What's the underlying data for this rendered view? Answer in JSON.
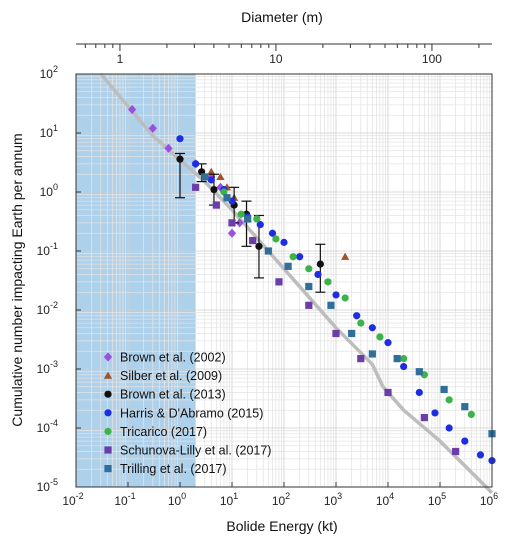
{
  "chart_data": {
    "type": "scatter",
    "xlabel": "Bolide Energy (kt)",
    "ylabel": "Cumulative number impacting Earth per annum",
    "top_axis_label": "Diameter (m)",
    "x_scale": "log",
    "y_scale": "log",
    "xlim": [
      0.01,
      1000000
    ],
    "ylim": [
      1e-05,
      100
    ],
    "x_ticks": [
      {
        "value": 0.01,
        "base": "10",
        "exp": "-2"
      },
      {
        "value": 0.1,
        "base": "10",
        "exp": "-1"
      },
      {
        "value": 1,
        "base": "10",
        "exp": "0"
      },
      {
        "value": 10,
        "base": "10",
        "exp": "1"
      },
      {
        "value": 100,
        "base": "10",
        "exp": "2"
      },
      {
        "value": 1000,
        "base": "10",
        "exp": "3"
      },
      {
        "value": 10000,
        "base": "10",
        "exp": "4"
      },
      {
        "value": 100000,
        "base": "10",
        "exp": "5"
      },
      {
        "value": 1000000,
        "base": "10",
        "exp": "6"
      }
    ],
    "y_ticks": [
      {
        "value": 100,
        "base": "10",
        "exp": "2"
      },
      {
        "value": 10,
        "base": "10",
        "exp": "1"
      },
      {
        "value": 1,
        "base": "10",
        "exp": "0"
      },
      {
        "value": 0.1,
        "base": "10",
        "exp": "-1"
      },
      {
        "value": 0.01,
        "base": "10",
        "exp": "-2"
      },
      {
        "value": 0.001,
        "base": "10",
        "exp": "-3"
      },
      {
        "value": 0.0001,
        "base": "10",
        "exp": "-4"
      },
      {
        "value": 1e-05,
        "base": "10",
        "exp": "-5"
      }
    ],
    "top_ticks": [
      {
        "label": "1",
        "energy": 0.07
      },
      {
        "label": "10",
        "energy": 70
      },
      {
        "label": "100",
        "energy": 70000
      }
    ],
    "top_minor_diameters": [
      0.6,
      0.7,
      0.8,
      0.9,
      2,
      3,
      4,
      5,
      6,
      7,
      8,
      9,
      20,
      30,
      40,
      50,
      60,
      70,
      80,
      90,
      200
    ],
    "shaded_region": {
      "x_from": 0.01,
      "x_to": 2,
      "color": "#9fc8e8"
    },
    "grid": true,
    "legend_position": "bottom-left",
    "power_law_curve": {
      "color": "#bdbdbd",
      "points": [
        [
          0.03,
          100
        ],
        [
          0.3,
          9
        ],
        [
          1,
          3.5
        ],
        [
          3,
          1.5
        ],
        [
          10,
          0.5
        ],
        [
          100,
          0.05
        ],
        [
          1000,
          0.005
        ],
        [
          5000,
          0.0012
        ],
        [
          8000,
          0.0005
        ],
        [
          20000,
          0.0002
        ],
        [
          100000,
          6e-05
        ],
        [
          1000000,
          8e-06
        ]
      ]
    },
    "series": [
      {
        "name": "Brown et al. (2002)",
        "marker": "diamond",
        "color": "#9b4fe0",
        "points": [
          [
            0.12,
            25
          ],
          [
            0.3,
            12
          ],
          [
            0.6,
            5.5
          ],
          [
            2,
            3
          ],
          [
            4,
            1.8
          ],
          [
            6,
            1.2
          ],
          [
            10,
            0.2
          ],
          [
            14,
            0.3
          ]
        ]
      },
      {
        "name": "Silber et al. (2009)",
        "marker": "triangle",
        "color": "#a0522d",
        "points": [
          [
            4,
            2.2
          ],
          [
            6,
            1.8
          ],
          [
            8,
            1.2
          ],
          [
            11,
            0.8
          ],
          [
            20,
            0.35
          ],
          [
            1500,
            0.08
          ]
        ]
      },
      {
        "name": "Brown et al. (2013)",
        "marker": "circle",
        "color": "#111111",
        "points": [
          [
            1,
            3.6
          ],
          [
            2.6,
            2.2
          ],
          [
            4.5,
            1.1
          ],
          [
            11,
            0.6
          ],
          [
            19,
            0.42
          ],
          [
            33,
            0.12
          ],
          [
            500,
            0.06
          ]
        ],
        "errors": [
          [
            0.8,
            4.5
          ],
          [
            1.5,
            3
          ],
          [
            0.6,
            2.0
          ],
          [
            0.3,
            1.2
          ],
          [
            0.12,
            0.7
          ],
          [
            0.035,
            0.4
          ],
          [
            0.02,
            0.13
          ]
        ]
      },
      {
        "name": "Harris & D'Abramo (2015)",
        "marker": "circle",
        "color": "#1f2de0",
        "points": [
          [
            1,
            8
          ],
          [
            2,
            3
          ],
          [
            4,
            1.6
          ],
          [
            7,
            1.1
          ],
          [
            10,
            0.7
          ],
          [
            20,
            0.38
          ],
          [
            35,
            0.28
          ],
          [
            60,
            0.2
          ],
          [
            100,
            0.14
          ],
          [
            200,
            0.08
          ],
          [
            450,
            0.04
          ],
          [
            1000,
            0.018
          ],
          [
            2500,
            0.008
          ],
          [
            5000,
            0.005
          ],
          [
            10000,
            0.0028
          ],
          [
            20000,
            0.0011
          ],
          [
            40000,
            0.0004
          ],
          [
            80000,
            0.00018
          ],
          [
            150000,
            0.0001
          ],
          [
            300000,
            6e-05
          ],
          [
            600000,
            3.5e-05
          ],
          [
            1000000,
            2.8e-05
          ]
        ]
      },
      {
        "name": "Tricarico (2017)",
        "marker": "circle",
        "color": "#3cb34a",
        "points": [
          [
            7,
            1.0
          ],
          [
            15,
            0.42
          ],
          [
            30,
            0.35
          ],
          [
            70,
            0.16
          ],
          [
            150,
            0.08
          ],
          [
            300,
            0.05
          ],
          [
            700,
            0.03
          ],
          [
            1500,
            0.016
          ],
          [
            3000,
            0.006
          ],
          [
            7000,
            0.0035
          ],
          [
            20000,
            0.0015
          ],
          [
            50000,
            0.0008
          ],
          [
            150000,
            0.0003
          ],
          [
            400000,
            0.00017
          ]
        ]
      },
      {
        "name": "Schunova-Lilly et al. (2017)",
        "marker": "square",
        "color": "#6a3da8",
        "points": [
          [
            2,
            1.2
          ],
          [
            5,
            0.6
          ],
          [
            10,
            0.3
          ],
          [
            25,
            0.15
          ],
          [
            80,
            0.03
          ],
          [
            300,
            0.012
          ],
          [
            1000,
            0.004
          ],
          [
            3000,
            0.0015
          ],
          [
            10000,
            0.0004
          ],
          [
            50000,
            0.00015
          ],
          [
            200000,
            4e-05
          ]
        ]
      },
      {
        "name": "Trilling et al. (2017)",
        "marker": "square",
        "color": "#2f6f9a",
        "points": [
          [
            3,
            1.8
          ],
          [
            8,
            0.8
          ],
          [
            20,
            0.35
          ],
          [
            50,
            0.1
          ],
          [
            120,
            0.055
          ],
          [
            300,
            0.025
          ],
          [
            800,
            0.012
          ],
          [
            2000,
            0.004
          ],
          [
            5000,
            0.0018
          ],
          [
            15000,
            0.0015
          ],
          [
            40000,
            0.0009
          ],
          [
            120000,
            0.00045
          ],
          [
            300000,
            0.00023
          ],
          [
            1000000,
            8e-05
          ]
        ]
      }
    ]
  }
}
